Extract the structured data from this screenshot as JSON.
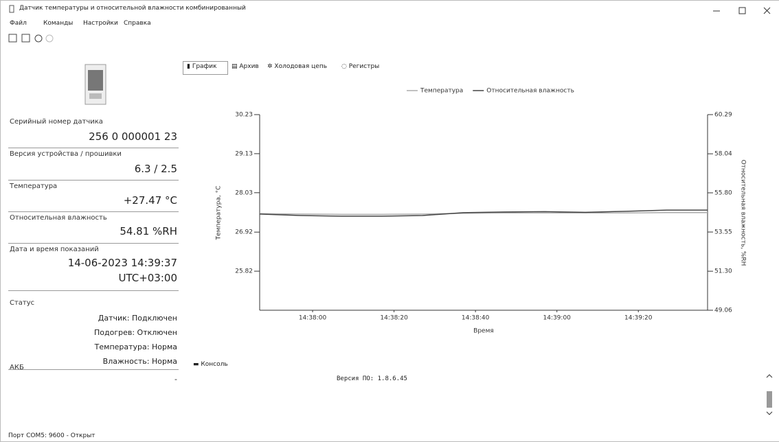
{
  "window": {
    "title": "Датчик температуры и относительной влажности комбинированный"
  },
  "menu": [
    "Файл",
    "Команды",
    "Настройки",
    "Справка"
  ],
  "tabs": [
    "График",
    "Архив",
    "Холодовая цепь",
    "Регистры"
  ],
  "fields": [
    {
      "label": "Серийный номер датчика",
      "value": "256 0 000001 23"
    },
    {
      "label": "Версия устройства / прошивки",
      "value": "6.3 / 2.5"
    },
    {
      "label": "Температура",
      "value": "+27.47 °C"
    },
    {
      "label": "Относительная влажность",
      "value": "54.81 %RH"
    },
    {
      "label": "Дата и время показаний",
      "value": "14-06-2023 14:39:37",
      "value2": "UTC+03:00"
    }
  ],
  "status": {
    "title": "Статус",
    "items": [
      "Датчик: Подключен",
      "Подогрев: Отключен",
      "Температура: Норма",
      "Влажность: Норма"
    ]
  },
  "battery": {
    "label": "АКБ",
    "value": "-"
  },
  "console": {
    "title": "Консоль",
    "text": "Версия ПО: 1.8.6.45"
  },
  "statusbar": "Порт COM5: 9600 - Открыт",
  "chart_data": {
    "type": "line",
    "x_label": "Время",
    "y_label": "Температура, °C",
    "y2_label": "Относительная влажность, %RH",
    "x": [
      "14:37:47",
      "14:37:57",
      "14:38:07",
      "14:38:17",
      "14:38:27",
      "14:38:37",
      "14:38:47",
      "14:38:57",
      "14:39:07",
      "14:39:17",
      "14:39:27",
      "14:39:37"
    ],
    "xlim": [
      "14:37:47",
      "14:39:37"
    ],
    "xticks": [
      "14:38:00",
      "14:38:20",
      "14:38:40",
      "14:39:00",
      "14:39:20"
    ],
    "ylim": [
      24.72,
      30.23
    ],
    "yticks": [
      25.82,
      26.92,
      28.03,
      29.13,
      30.23
    ],
    "y2lim": [
      49.06,
      60.29
    ],
    "y2ticks": [
      49.06,
      {
        "value": 51.3,
        "label": "51.30"
      },
      53.55,
      {
        "value": 55.8,
        "label": "55.80"
      },
      58.04,
      60.29
    ],
    "grid": false,
    "series": [
      {
        "name": "Температура",
        "color": "#aaaaaa",
        "values": [
          27.44,
          27.43,
          27.42,
          27.42,
          27.43,
          27.45,
          27.46,
          27.46,
          27.46,
          27.46,
          27.47,
          27.47
        ]
      },
      {
        "name": "Относительная влажность",
        "color": "#444444",
        "axis": "y2",
        "values": [
          54.58,
          54.5,
          54.46,
          54.46,
          54.5,
          54.66,
          54.7,
          54.72,
          54.68,
          54.74,
          54.81,
          54.81
        ]
      }
    ]
  }
}
